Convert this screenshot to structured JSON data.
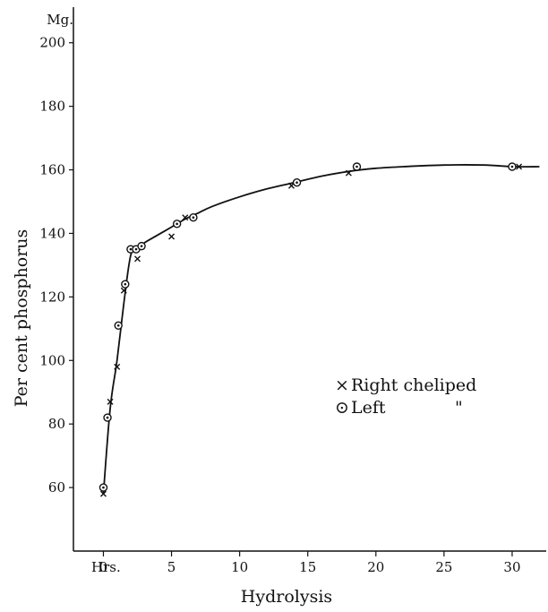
{
  "chart_data": {
    "type": "scatter",
    "xlabel": "Hydrolysis",
    "ylabel": "Per cent phosphorus",
    "x_unit_label": "Hrs.",
    "y_unit_label": "Mg.",
    "xlim": [
      -2.2,
      32.5
    ],
    "ylim": [
      40,
      205
    ],
    "x_ticks": [
      0,
      5,
      10,
      15,
      20,
      25,
      30
    ],
    "y_ticks": [
      60,
      80,
      100,
      120,
      140,
      160,
      180,
      200
    ],
    "grid": false,
    "legend_position": "center-right",
    "legend": [
      {
        "symbol": "×",
        "label": "Right cheliped",
        "ditto": ""
      },
      {
        "symbol": "⊙",
        "label": "Left",
        "ditto": "\""
      }
    ],
    "series": [
      {
        "name": "Right cheliped",
        "marker": "x",
        "points": [
          {
            "x": 0,
            "y": 58
          },
          {
            "x": 0.5,
            "y": 87
          },
          {
            "x": 1.0,
            "y": 98
          },
          {
            "x": 1.5,
            "y": 122
          },
          {
            "x": 2.5,
            "y": 132
          },
          {
            "x": 5.0,
            "y": 139
          },
          {
            "x": 6.0,
            "y": 145
          },
          {
            "x": 13.8,
            "y": 155
          },
          {
            "x": 18.0,
            "y": 159
          },
          {
            "x": 30.5,
            "y": 161
          }
        ]
      },
      {
        "name": "Left",
        "marker": "o",
        "points": [
          {
            "x": 0,
            "y": 60
          },
          {
            "x": 0.3,
            "y": 82
          },
          {
            "x": 1.1,
            "y": 111
          },
          {
            "x": 1.6,
            "y": 124
          },
          {
            "x": 2.0,
            "y": 135
          },
          {
            "x": 2.4,
            "y": 135
          },
          {
            "x": 2.8,
            "y": 136
          },
          {
            "x": 5.4,
            "y": 143
          },
          {
            "x": 6.6,
            "y": 145
          },
          {
            "x": 14.2,
            "y": 156
          },
          {
            "x": 18.6,
            "y": 161
          },
          {
            "x": 30.0,
            "y": 161
          }
        ]
      }
    ],
    "fit_curve": [
      {
        "x": 0,
        "y": 58
      },
      {
        "x": 0.5,
        "y": 85
      },
      {
        "x": 1.0,
        "y": 100
      },
      {
        "x": 1.5,
        "y": 118
      },
      {
        "x": 2.0,
        "y": 133
      },
      {
        "x": 2.5,
        "y": 135
      },
      {
        "x": 3.0,
        "y": 137
      },
      {
        "x": 4.0,
        "y": 139.5
      },
      {
        "x": 5.0,
        "y": 142
      },
      {
        "x": 6.0,
        "y": 144.5
      },
      {
        "x": 7.0,
        "y": 146.5
      },
      {
        "x": 8.0,
        "y": 148.5
      },
      {
        "x": 10.0,
        "y": 151.5
      },
      {
        "x": 12.0,
        "y": 154
      },
      {
        "x": 14.0,
        "y": 156
      },
      {
        "x": 16.0,
        "y": 158
      },
      {
        "x": 18.0,
        "y": 159.5
      },
      {
        "x": 20.0,
        "y": 160.5
      },
      {
        "x": 22.0,
        "y": 161
      },
      {
        "x": 25.0,
        "y": 161.5
      },
      {
        "x": 28.0,
        "y": 161.5
      },
      {
        "x": 30.0,
        "y": 161
      },
      {
        "x": 32.0,
        "y": 161
      }
    ]
  }
}
